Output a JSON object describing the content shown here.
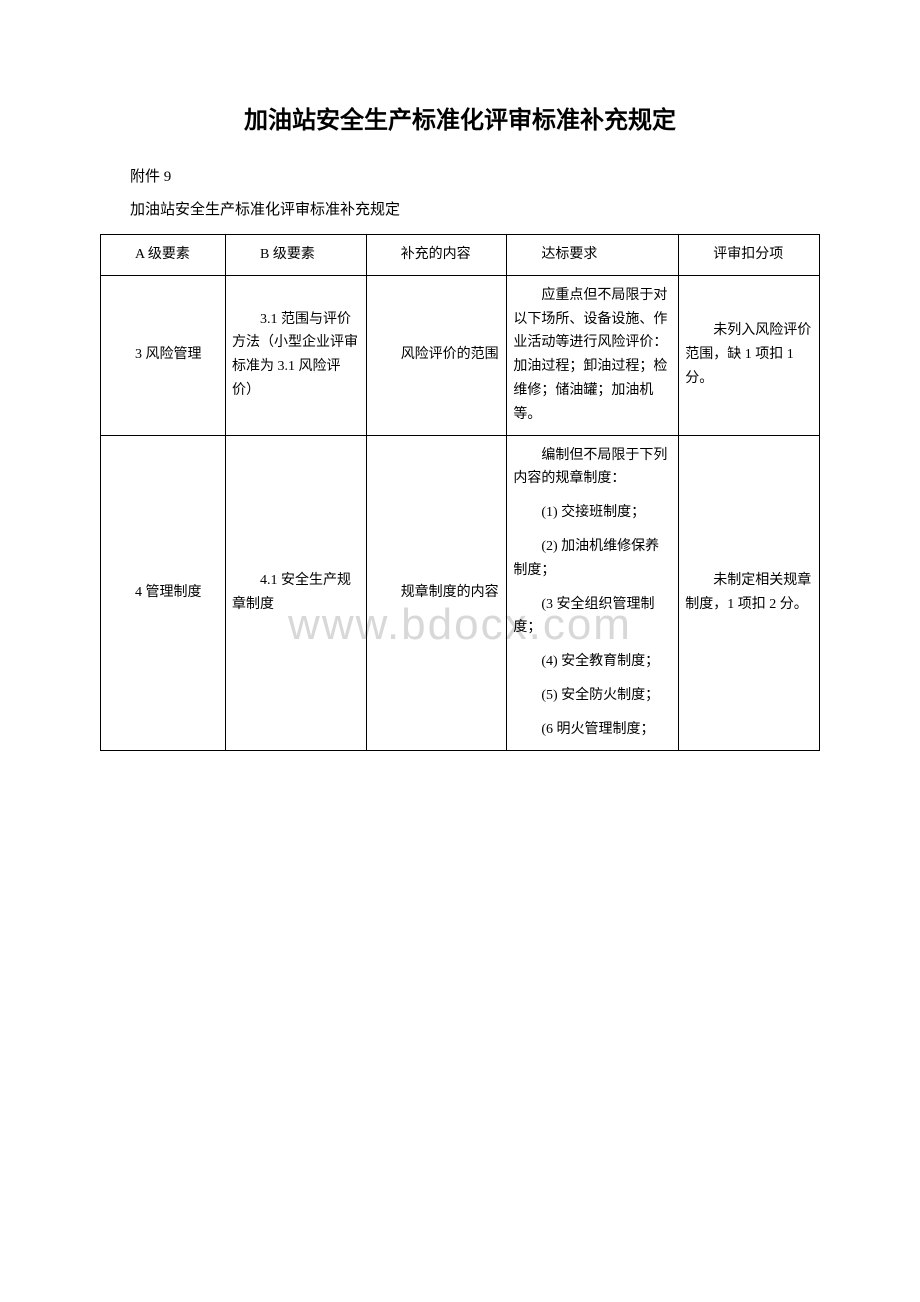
{
  "title": "加油站安全生产标准化评审标准补充规定",
  "appendix": "附件 9",
  "subtitle": "加油站安全生产标准化评审标准补充规定",
  "watermark": "www.bdocx.com",
  "table": {
    "headers": {
      "col1": "A 级要素",
      "col2": "B 级要素",
      "col3": "补充的内容",
      "col4": "达标要求",
      "col5": "评审扣分项"
    },
    "rows": [
      {
        "aLevel": "3 风险管理",
        "bLevel": "3.1 范围与评价方法（小型企业评审标准为 3.1 风险评价）",
        "supplement": "风险评价的范围",
        "requirements": [
          "应重点但不局限于对以下场所、设备设施、作业活动等进行风险评价：加油过程；卸油过程；检维修；储油罐；加油机等。"
        ],
        "deduction": "未列入风险评价范围，缺 1 项扣 1 分。"
      },
      {
        "aLevel": "4 管理制度",
        "bLevel": "4.1 安全生产规章制度",
        "supplement": "规章制度的内容",
        "requirements": [
          "编制但不局限于下列内容的规章制度：",
          "(1) 交接班制度；",
          "(2) 加油机维修保养制度；",
          "(3 安全组织管理制度；",
          "(4) 安全教育制度；",
          "(5) 安全防火制度；",
          "(6 明火管理制度；"
        ],
        "deduction": "未制定相关规章制度，1 项扣 2 分。"
      }
    ]
  }
}
